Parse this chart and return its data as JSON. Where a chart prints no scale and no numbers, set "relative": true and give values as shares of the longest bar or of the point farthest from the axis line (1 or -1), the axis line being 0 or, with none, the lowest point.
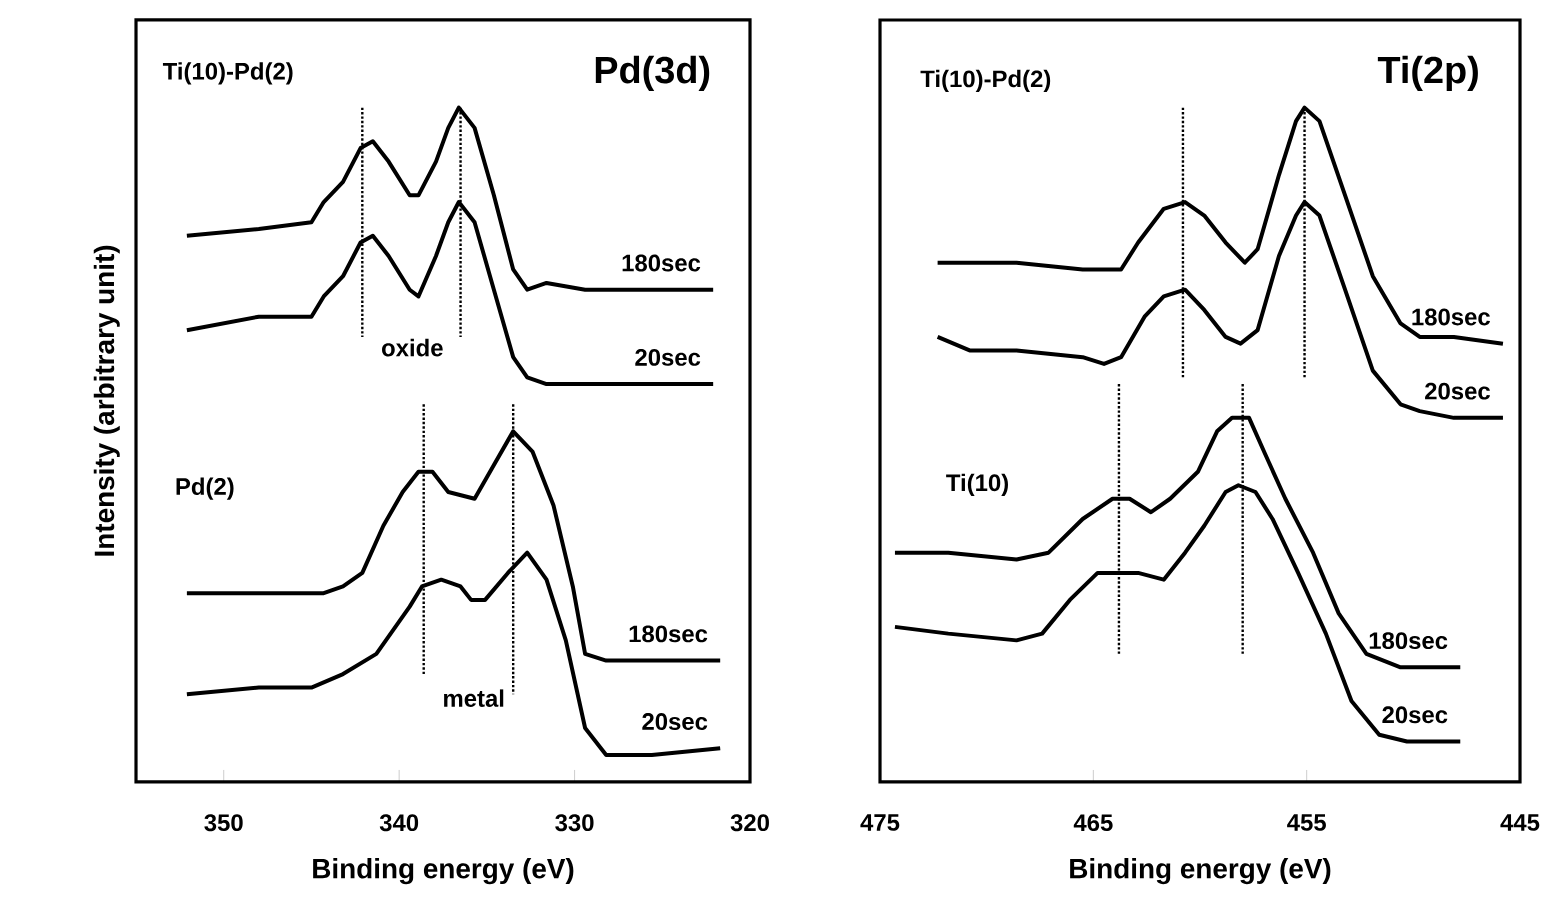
{
  "chart_data": [
    {
      "type": "line",
      "title": "Pd(3d)",
      "xlabel": "Binding  energy  (eV)",
      "ylabel": "Intensity (arbitrary unit)",
      "relative": true,
      "xlim": [
        355,
        320
      ],
      "xticks": [
        350,
        340,
        330,
        320
      ],
      "annotations": [
        "Ti(10)-Pd(2)",
        "oxide",
        "Pd(2)",
        "metal"
      ],
      "series": [
        {
          "name": "180sec",
          "color": "#000000",
          "x": [
            352.1,
            348.0,
            345.0,
            344.3,
            343.2,
            342.2,
            341.5,
            340.6,
            339.4,
            338.9,
            337.9,
            337.2,
            336.6,
            335.7,
            334.6,
            333.5,
            332.7,
            331.6,
            329.4,
            325.6,
            322.1
          ],
          "values": [
            0.81,
            0.82,
            0.83,
            0.86,
            0.89,
            0.94,
            0.95,
            0.92,
            0.87,
            0.87,
            0.92,
            0.97,
            1.0,
            0.97,
            0.87,
            0.76,
            0.73,
            0.74,
            0.73,
            0.73,
            0.73
          ]
        },
        {
          "name": "20sec",
          "color": "#000000",
          "x": [
            352.1,
            348.0,
            345.0,
            344.3,
            343.2,
            342.2,
            341.5,
            340.6,
            339.4,
            338.9,
            337.9,
            337.2,
            336.6,
            335.7,
            334.6,
            333.5,
            332.7,
            331.6,
            329.4,
            325.6,
            322.1
          ],
          "values": [
            0.67,
            0.69,
            0.69,
            0.72,
            0.75,
            0.8,
            0.81,
            0.78,
            0.73,
            0.72,
            0.78,
            0.83,
            0.86,
            0.83,
            0.73,
            0.63,
            0.6,
            0.59,
            0.59,
            0.59,
            0.59
          ]
        },
        {
          "name": "180sec",
          "color": "#000000",
          "x": [
            352.1,
            348.0,
            344.3,
            343.2,
            342.1,
            340.9,
            339.8,
            338.9,
            338.1,
            337.2,
            335.7,
            334.6,
            333.5,
            332.4,
            331.2,
            330.1,
            329.4,
            328.2,
            325.6,
            321.7
          ],
          "values": [
            0.28,
            0.28,
            0.28,
            0.29,
            0.31,
            0.38,
            0.43,
            0.46,
            0.46,
            0.43,
            0.42,
            0.47,
            0.52,
            0.49,
            0.41,
            0.29,
            0.19,
            0.18,
            0.18,
            0.18
          ]
        },
        {
          "name": "20sec",
          "color": "#000000",
          "x": [
            352.1,
            348.0,
            345.0,
            343.2,
            341.3,
            339.4,
            338.7,
            337.6,
            336.5,
            335.9,
            335.1,
            333.8,
            332.7,
            331.6,
            330.5,
            329.4,
            328.2,
            325.6,
            321.7
          ],
          "values": [
            0.13,
            0.14,
            0.14,
            0.16,
            0.19,
            0.26,
            0.29,
            0.3,
            0.29,
            0.27,
            0.27,
            0.31,
            0.34,
            0.3,
            0.21,
            0.08,
            0.04,
            0.04,
            0.05
          ]
        },
        {
          "color": "#000000",
          "line_style": "dotted",
          "x": [
            342.1,
            342.1
          ],
          "values": [
            1.0,
            0.66
          ]
        },
        {
          "color": "#000000",
          "line_style": "dotted",
          "x": [
            336.5,
            336.5
          ],
          "values": [
            1.0,
            0.66
          ]
        },
        {
          "color": "#000000",
          "line_style": "dotted",
          "x": [
            338.6,
            338.6
          ],
          "values": [
            0.56,
            0.16
          ]
        },
        {
          "color": "#000000",
          "line_style": "dotted",
          "x": [
            333.5,
            333.5
          ],
          "values": [
            0.56,
            0.13
          ]
        }
      ]
    },
    {
      "type": "line",
      "title": "Ti(2p)",
      "xlabel": "Binding  energy  (eV)",
      "relative": true,
      "xlim": [
        475,
        445
      ],
      "xticks": [
        475,
        465,
        455,
        445
      ],
      "annotations": [
        "Ti(10)-Pd(2)",
        "Ti(10)"
      ],
      "series": [
        {
          "name": "180sec",
          "color": "#000000",
          "x": [
            472.3,
            468.6,
            465.5,
            463.7,
            462.9,
            461.7,
            460.7,
            459.8,
            458.8,
            457.9,
            457.3,
            456.3,
            455.5,
            455.1,
            454.4,
            453.2,
            451.9,
            450.6,
            449.7,
            448.1,
            445.8
          ],
          "values": [
            0.77,
            0.77,
            0.76,
            0.76,
            0.8,
            0.85,
            0.86,
            0.84,
            0.8,
            0.77,
            0.79,
            0.9,
            0.98,
            1.0,
            0.98,
            0.87,
            0.75,
            0.68,
            0.66,
            0.66,
            0.65
          ]
        },
        {
          "name": "20sec",
          "color": "#000000",
          "x": [
            472.3,
            470.8,
            468.6,
            465.5,
            464.5,
            463.7,
            462.6,
            461.7,
            460.7,
            459.8,
            458.8,
            458.1,
            457.3,
            456.3,
            455.5,
            455.1,
            454.4,
            453.2,
            451.9,
            450.6,
            449.7,
            448.1,
            445.8
          ],
          "values": [
            0.66,
            0.64,
            0.64,
            0.63,
            0.62,
            0.63,
            0.69,
            0.72,
            0.73,
            0.7,
            0.66,
            0.65,
            0.67,
            0.78,
            0.84,
            0.86,
            0.84,
            0.73,
            0.61,
            0.56,
            0.55,
            0.54,
            0.54
          ]
        },
        {
          "name": "180sec",
          "color": "#000000",
          "x": [
            474.3,
            471.8,
            468.6,
            467.1,
            465.5,
            464.1,
            463.3,
            462.3,
            461.4,
            460.1,
            459.2,
            458.5,
            457.7,
            457.0,
            456.0,
            454.7,
            453.5,
            452.2,
            450.6,
            447.8
          ],
          "values": [
            0.34,
            0.34,
            0.33,
            0.34,
            0.39,
            0.42,
            0.42,
            0.4,
            0.42,
            0.46,
            0.52,
            0.54,
            0.54,
            0.49,
            0.42,
            0.34,
            0.25,
            0.19,
            0.17,
            0.17
          ]
        },
        {
          "name": "20sec",
          "color": "#000000",
          "x": [
            474.3,
            471.8,
            468.6,
            467.4,
            466.1,
            464.8,
            463.9,
            462.9,
            461.7,
            460.7,
            459.8,
            458.8,
            458.2,
            457.4,
            456.6,
            455.4,
            454.1,
            452.9,
            451.6,
            450.3,
            447.8
          ],
          "values": [
            0.23,
            0.22,
            0.21,
            0.22,
            0.27,
            0.31,
            0.31,
            0.31,
            0.3,
            0.34,
            0.38,
            0.43,
            0.44,
            0.43,
            0.39,
            0.31,
            0.22,
            0.12,
            0.07,
            0.06,
            0.06
          ]
        },
        {
          "color": "#000000",
          "line_style": "dotted",
          "x": [
            460.8,
            460.8
          ],
          "values": [
            1.0,
            0.6
          ]
        },
        {
          "color": "#000000",
          "line_style": "dotted",
          "x": [
            455.1,
            455.1
          ],
          "values": [
            1.0,
            0.6
          ]
        },
        {
          "color": "#000000",
          "line_style": "dotted",
          "x": [
            463.8,
            463.8
          ],
          "values": [
            0.59,
            0.19
          ]
        },
        {
          "color": "#000000",
          "line_style": "dotted",
          "x": [
            458.0,
            458.0
          ],
          "values": [
            0.59,
            0.19
          ]
        }
      ]
    }
  ]
}
